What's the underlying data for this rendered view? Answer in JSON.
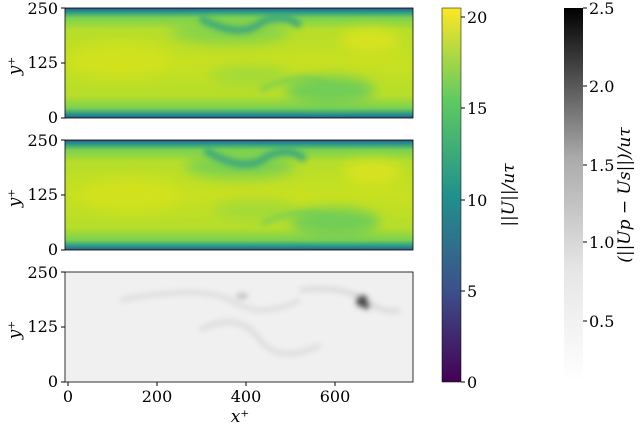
{
  "chart_data": [
    {
      "type": "heatmap",
      "panel": "top",
      "field": "velocity-magnitude",
      "xlim": [
        0,
        785
      ],
      "ylim": [
        0,
        250
      ],
      "yticks": [
        "0",
        "125",
        "250"
      ],
      "ylabel": "y⁺",
      "colormap": "viridis",
      "clim": [
        0,
        20.5
      ]
    },
    {
      "type": "heatmap",
      "panel": "middle",
      "field": "velocity-magnitude",
      "xlim": [
        0,
        785
      ],
      "ylim": [
        0,
        250
      ],
      "yticks": [
        "0",
        "125",
        "250"
      ],
      "ylabel": "y⁺",
      "colormap": "viridis",
      "clim": [
        0,
        20.5
      ]
    },
    {
      "type": "heatmap",
      "panel": "bottom",
      "field": "difference-magnitude",
      "xlim": [
        0,
        785
      ],
      "ylim": [
        0,
        250
      ],
      "xticks": [
        "0",
        "200",
        "400",
        "600"
      ],
      "yticks": [
        "0",
        "125",
        "250"
      ],
      "xlabel": "x⁺",
      "ylabel": "y⁺",
      "colormap": "gray_r",
      "clim": [
        0,
        2.5
      ]
    }
  ],
  "colorbars": {
    "velocity": {
      "colormap": "viridis",
      "range": [
        0,
        20.5
      ],
      "ticks": [
        "0",
        "5",
        "10",
        "15",
        "20"
      ],
      "label": "||U||/uτ"
    },
    "difference": {
      "colormap": "gray_r",
      "range": [
        0,
        2.5
      ],
      "ticks": [
        "0.5",
        "1.0",
        "1.5",
        "2.0",
        "2.5"
      ],
      "label": "(||Up − Us||)/uτ"
    }
  },
  "colors": {
    "viridis_stops": [
      "#440154",
      "#3b528b",
      "#21918c",
      "#5ec962",
      "#fde725"
    ],
    "gray_stops": [
      "#ffffff",
      "#000000"
    ],
    "field_light": "#b8de29",
    "field_mid": "#7ad151",
    "field_teal": "#2a9d8a",
    "diff_bg": "#eeeeee"
  }
}
